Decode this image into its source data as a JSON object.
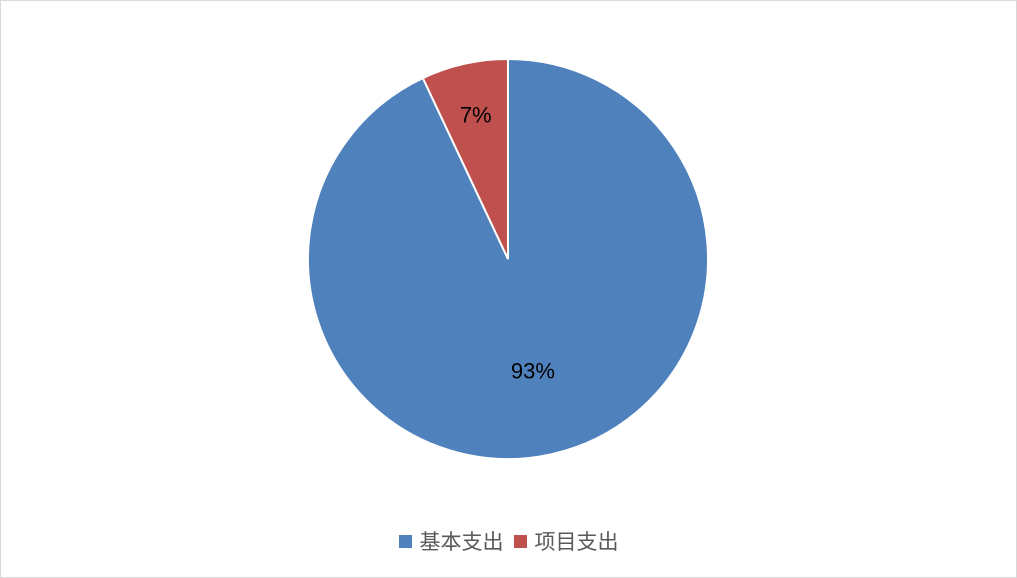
{
  "chart_data": {
    "type": "pie",
    "categories": [
      "基本支出",
      "项目支出"
    ],
    "values": [
      93,
      7
    ],
    "data_labels": [
      "93%",
      "7%"
    ],
    "colors": [
      "#4f81bd",
      "#c0504d"
    ],
    "start_angle": "12 o'clock, clockwise",
    "legend_position": "bottom",
    "title": ""
  }
}
